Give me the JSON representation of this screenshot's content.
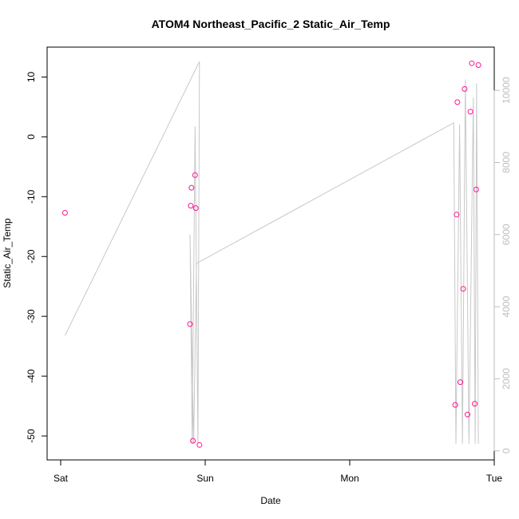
{
  "chart_data": {
    "type": "scatter",
    "title": "ATOM4 Northeast_Pacific_2 Static_Air_Temp",
    "xlabel": "Date",
    "ylabel": "Static_Air_Temp",
    "x_ticks": [
      "Sat",
      "Sun",
      "Mon",
      "Tue"
    ],
    "y_ticks": [
      "10",
      "0",
      "-10",
      "-20",
      "-30",
      "-40",
      "-50"
    ],
    "y2_ticks": [
      "0",
      "2000",
      "4000",
      "6000",
      "8000",
      "10000"
    ],
    "xlim": [
      0,
      3
    ],
    "ylim": [
      -54,
      15
    ],
    "y2lim": [
      -250,
      11200
    ],
    "grid": false,
    "colors": {
      "points": "#ff1493",
      "line": "#c8c8c8",
      "right_axis": "#bdbdbd",
      "axis": "#000000"
    },
    "series": [
      {
        "points": [
          {
            "x": 0.03,
            "y": -12.7
          },
          {
            "x": 0.895,
            "y": -31.3
          },
          {
            "x": 0.9,
            "y": -11.5
          },
          {
            "x": 0.905,
            "y": -8.5
          },
          {
            "x": 0.915,
            "y": -50.8
          },
          {
            "x": 0.93,
            "y": -6.4
          },
          {
            "x": 0.935,
            "y": -11.9
          },
          {
            "x": 0.96,
            "y": -51.5
          },
          {
            "x": 2.73,
            "y": -44.8
          },
          {
            "x": 2.74,
            "y": -13.0
          },
          {
            "x": 2.745,
            "y": 5.8
          },
          {
            "x": 2.765,
            "y": -41.0
          },
          {
            "x": 2.785,
            "y": -25.4
          },
          {
            "x": 2.795,
            "y": 8.0
          },
          {
            "x": 2.815,
            "y": -46.4
          },
          {
            "x": 2.835,
            "y": 4.2
          },
          {
            "x": 2.845,
            "y": 12.3
          },
          {
            "x": 2.865,
            "y": -44.6
          },
          {
            "x": 2.875,
            "y": -8.8
          },
          {
            "x": 2.89,
            "y": 12.0
          }
        ]
      },
      {
        "axis": "right",
        "points": [
          {
            "x": 0.03,
            "y": 3200
          },
          {
            "x": 0.96,
            "y": 10800
          },
          {
            "x": 0.95,
            "y": 200
          },
          {
            "x": 0.93,
            "y": 9000
          },
          {
            "x": 0.91,
            "y": 200
          },
          {
            "x": 0.895,
            "y": 6000
          },
          {
            "x": 0.92,
            "y": 200
          },
          {
            "x": 0.94,
            "y": 5200
          },
          {
            "x": 2.72,
            "y": 9100
          },
          {
            "x": 2.735,
            "y": 200
          },
          {
            "x": 2.76,
            "y": 9050
          },
          {
            "x": 2.78,
            "y": 200
          },
          {
            "x": 2.8,
            "y": 10300
          },
          {
            "x": 2.825,
            "y": 200
          },
          {
            "x": 2.855,
            "y": 9800
          },
          {
            "x": 2.868,
            "y": 200
          },
          {
            "x": 2.878,
            "y": 10200
          },
          {
            "x": 2.89,
            "y": 200
          }
        ]
      }
    ]
  }
}
